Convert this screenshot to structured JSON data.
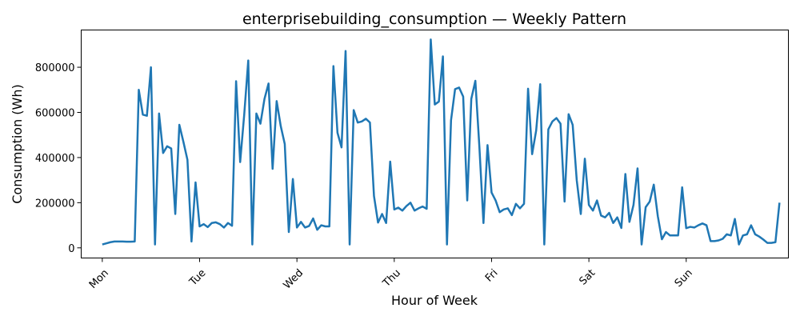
{
  "chart_data": {
    "type": "line",
    "title": "enterprisebuilding_consumption — Weekly Pattern",
    "xlabel": "Hour of Week",
    "ylabel": "Consumption (Wh)",
    "xlim": [
      -5.2,
      169.2
    ],
    "ylim": [
      -45000,
      965000
    ],
    "x_ticks": [
      {
        "value": 0,
        "label": "Mon"
      },
      {
        "value": 24,
        "label": "Tue"
      },
      {
        "value": 48,
        "label": "Wed"
      },
      {
        "value": 72,
        "label": "Thu"
      },
      {
        "value": 96,
        "label": "Fri"
      },
      {
        "value": 120,
        "label": "Sat"
      },
      {
        "value": 144,
        "label": "Sun"
      }
    ],
    "y_ticks": [
      0,
      200000,
      400000,
      600000,
      800000
    ],
    "grid": false,
    "series": [
      {
        "color": "#1f77b4",
        "x": [
          0,
          1,
          2,
          3,
          4,
          5,
          6,
          7,
          8,
          9,
          10,
          11,
          12,
          13,
          14,
          15,
          16,
          17,
          18,
          19,
          20,
          21,
          22,
          23,
          24,
          25,
          26,
          27,
          28,
          29,
          30,
          31,
          32,
          33,
          34,
          35,
          36,
          37,
          38,
          39,
          40,
          41,
          42,
          43,
          44,
          45,
          46,
          47,
          48,
          49,
          50,
          51,
          52,
          53,
          54,
          55,
          56,
          57,
          58,
          59,
          60,
          61,
          62,
          63,
          64,
          65,
          66,
          67,
          68,
          69,
          70,
          71,
          72,
          73,
          74,
          75,
          76,
          77,
          78,
          79,
          80,
          81,
          82,
          83,
          84,
          85,
          86,
          87,
          88,
          89,
          90,
          91,
          92,
          93,
          94,
          95,
          96,
          97,
          98,
          99,
          100,
          101,
          102,
          103,
          104,
          105,
          106,
          107,
          108,
          109,
          110,
          111,
          112,
          113,
          114,
          115,
          116,
          117,
          118,
          119,
          120,
          121,
          122,
          123,
          124,
          125,
          126,
          127,
          128,
          129,
          130,
          131,
          132,
          133,
          134,
          135,
          136,
          137,
          138,
          139,
          140,
          141,
          142,
          143,
          144,
          145,
          146,
          147,
          148,
          149,
          150,
          151,
          152,
          153,
          154,
          155,
          156,
          157,
          158,
          159,
          160,
          161,
          162,
          163,
          164,
          165,
          166,
          167
        ],
        "values": [
          15000,
          20000,
          25000,
          28000,
          28000,
          28000,
          27000,
          27000,
          28000,
          700000,
          590000,
          585000,
          800000,
          15000,
          595000,
          420000,
          450000,
          440000,
          150000,
          545000,
          470000,
          390000,
          28000,
          290000,
          95000,
          105000,
          92000,
          110000,
          113000,
          105000,
          90000,
          110000,
          98000,
          738000,
          380000,
          590000,
          830000,
          15000,
          595000,
          550000,
          660000,
          728000,
          350000,
          650000,
          540000,
          460000,
          70000,
          305000,
          90000,
          115000,
          90000,
          97000,
          130000,
          80000,
          100000,
          95000,
          95000,
          805000,
          510000,
          445000,
          872000,
          15000,
          610000,
          555000,
          560000,
          572000,
          555000,
          230000,
          112000,
          150000,
          110000,
          382000,
          170000,
          178000,
          165000,
          185000,
          200000,
          165000,
          175000,
          183000,
          173000,
          923000,
          635000,
          648000,
          848000,
          15000,
          565000,
          703000,
          710000,
          670000,
          210000,
          660000,
          740000,
          445000,
          110000,
          455000,
          245000,
          210000,
          158000,
          170000,
          175000,
          145000,
          195000,
          175000,
          195000,
          705000,
          415000,
          520000,
          725000,
          15000,
          525000,
          560000,
          575000,
          550000,
          205000,
          592000,
          545000,
          300000,
          150000,
          395000,
          190000,
          165000,
          210000,
          143000,
          135000,
          155000,
          110000,
          135000,
          88000,
          327000,
          115000,
          190000,
          352000,
          15000,
          180000,
          205000,
          280000,
          140000,
          38000,
          70000,
          55000,
          55000,
          55000,
          268000,
          87000,
          93000,
          90000,
          100000,
          108000,
          100000,
          30000,
          30000,
          33000,
          40000,
          60000,
          55000,
          128000,
          15000,
          55000,
          60000,
          100000,
          60000,
          50000,
          37000,
          22000,
          22000,
          25000,
          200000
        ]
      }
    ]
  }
}
